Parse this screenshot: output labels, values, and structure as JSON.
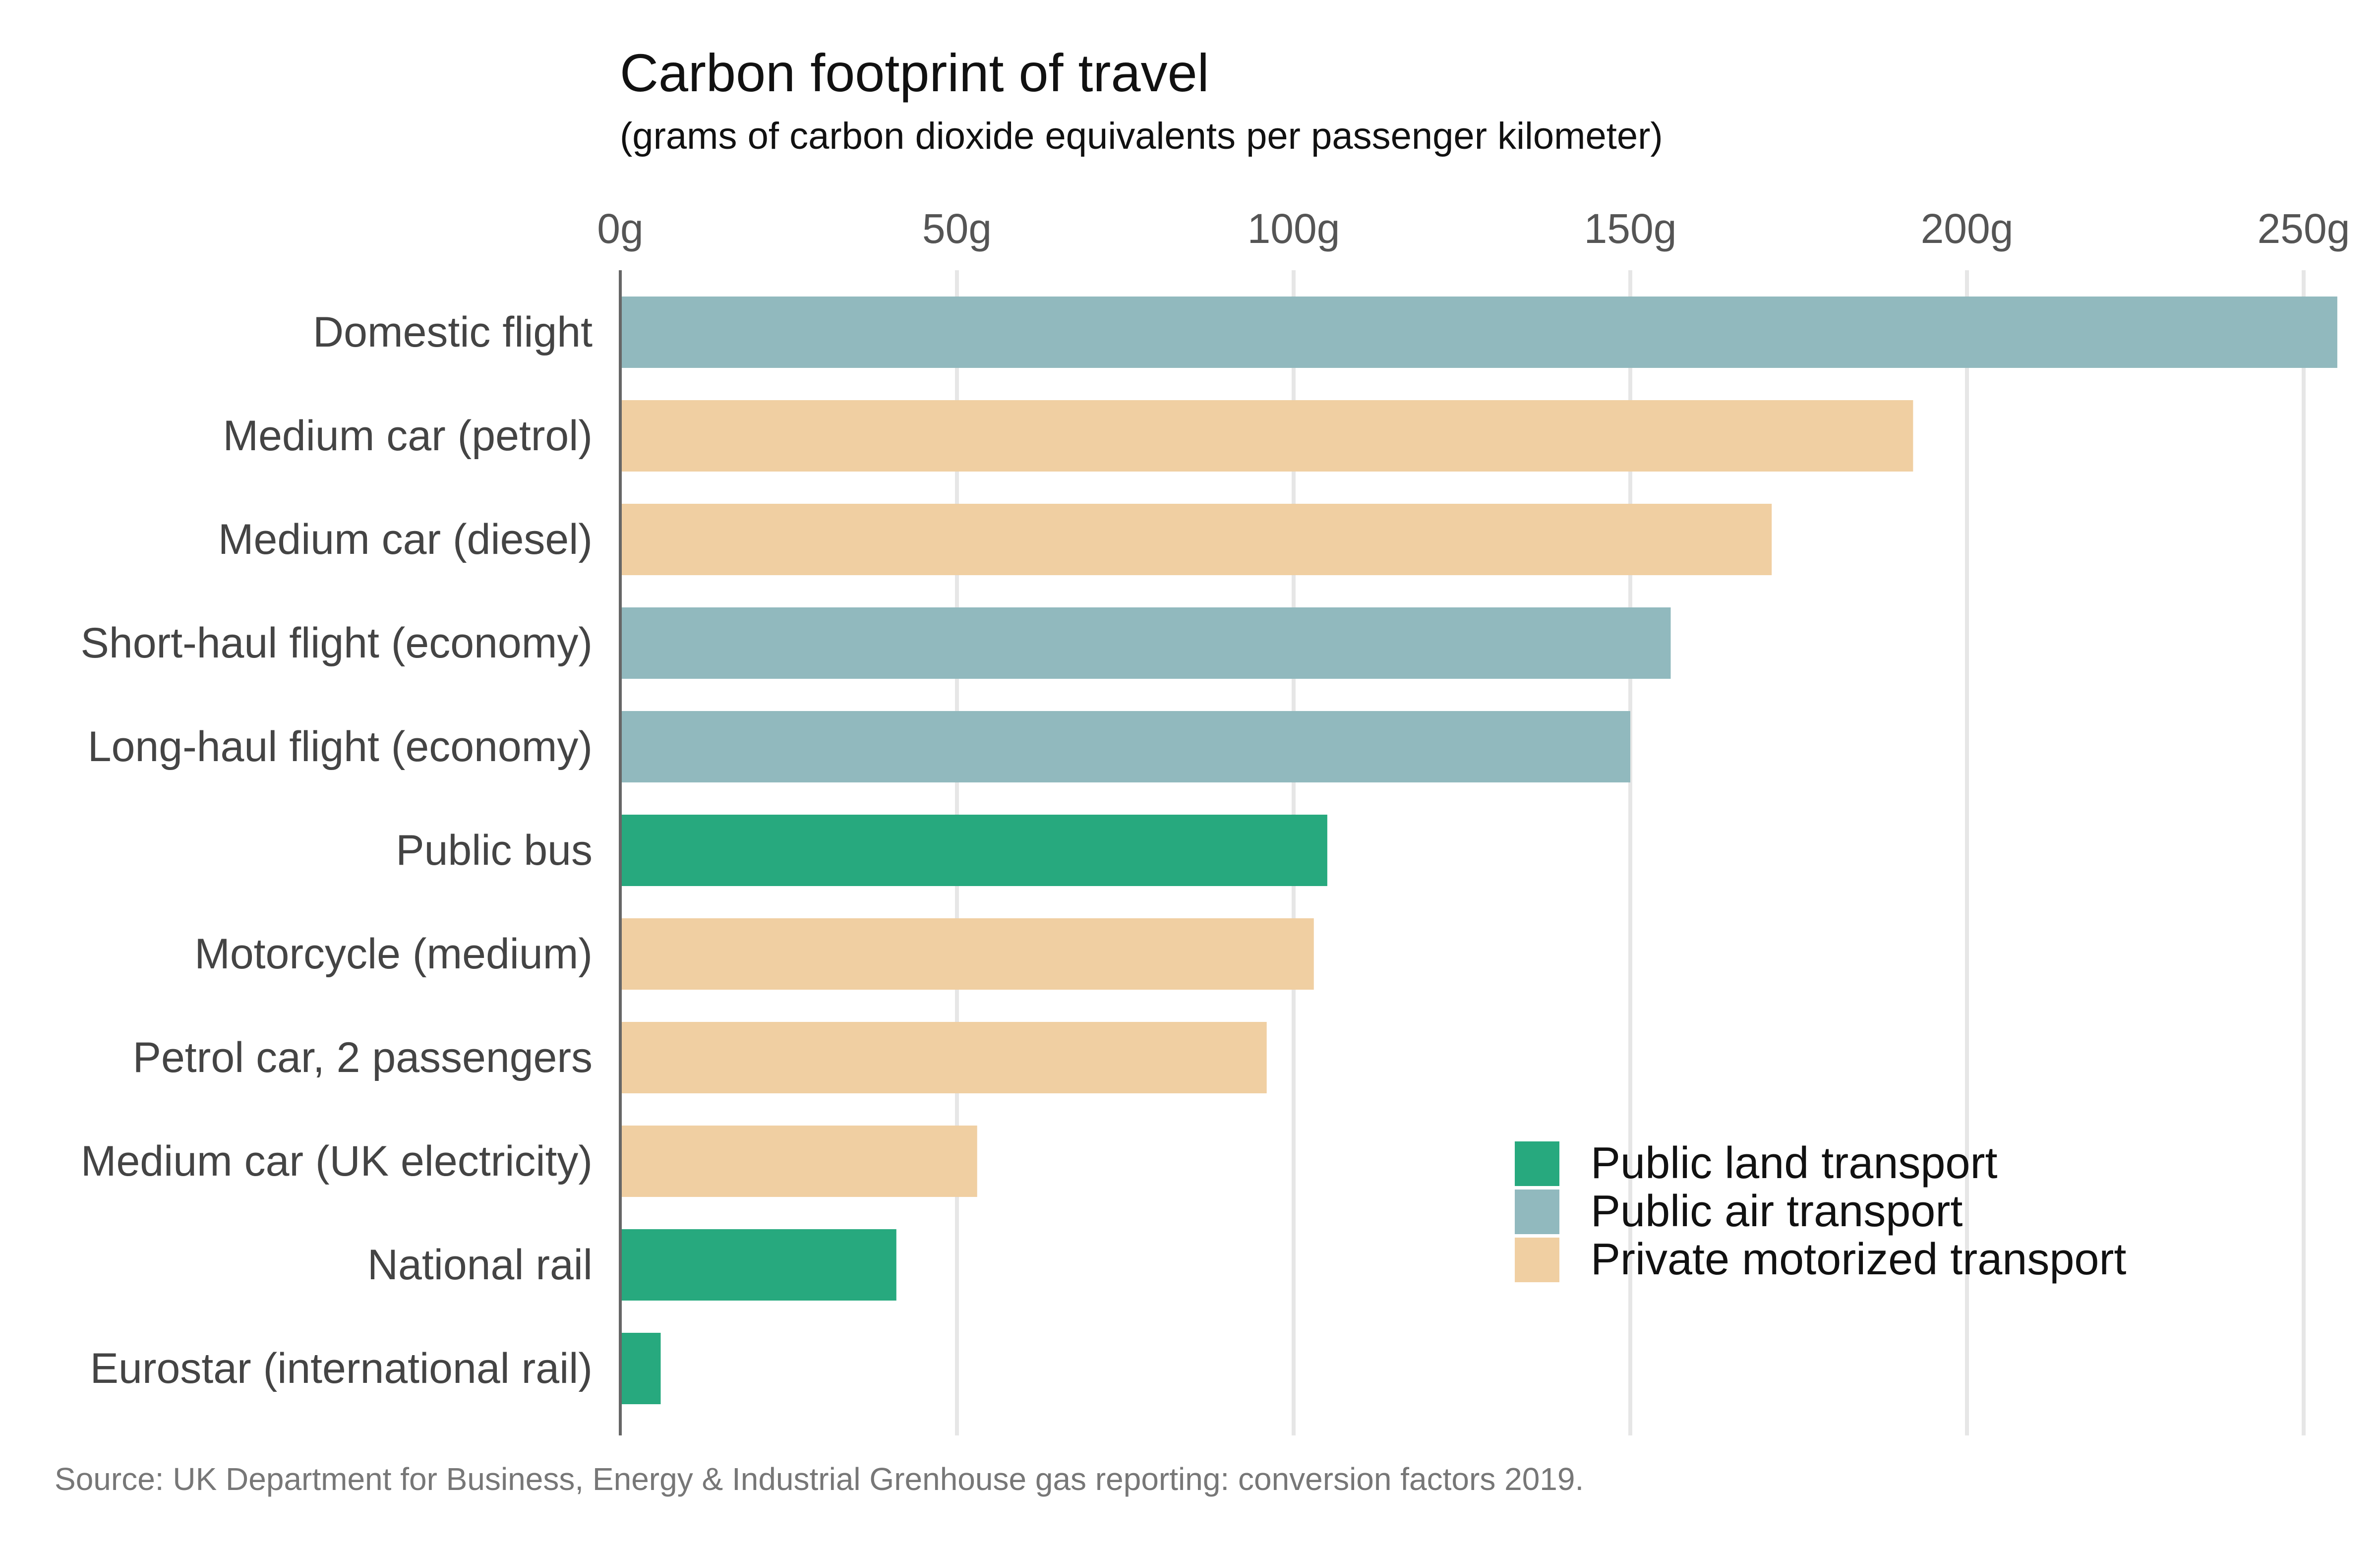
{
  "chart_data": {
    "type": "bar",
    "orientation": "horizontal",
    "title": "Carbon footprint of travel",
    "subtitle": "(grams of carbon dioxide equivalents per passenger kilometer)",
    "source": "Source: UK Department for Business, Energy & Industrial Grenhouse gas reporting: conversion factors 2019.",
    "x_axis": {
      "min": 0,
      "max": 255,
      "ticks": [
        0,
        50,
        100,
        150,
        200,
        250
      ],
      "tick_labels": [
        "0g",
        "50g",
        "100g",
        "150g",
        "200g",
        "250g"
      ],
      "position": "top",
      "grid": true
    },
    "categories": [
      "Domestic flight",
      "Medium car (petrol)",
      "Medium car (diesel)",
      "Short-haul flight (economy)",
      "Long-haul flight (economy)",
      "Public bus",
      "Motorcycle (medium)",
      "Petrol car, 2 passengers",
      "Medium car (UK electricity)",
      "National rail",
      "Eurostar (international rail)"
    ],
    "values": [
      255,
      192,
      171,
      156,
      150,
      105,
      103,
      96,
      53,
      41,
      6
    ],
    "groups": [
      "Public air transport",
      "Private motorized transport",
      "Private motorized transport",
      "Public air transport",
      "Public air transport",
      "Public land transport",
      "Private motorized transport",
      "Private motorized transport",
      "Private motorized transport",
      "Public land transport",
      "Public land transport"
    ],
    "legend": {
      "placement": "bottom-right",
      "entries": [
        {
          "name": "Public land transport",
          "color": "#27a97e"
        },
        {
          "name": "Public air transport",
          "color": "#91b9be"
        },
        {
          "name": "Private motorized transport",
          "color": "#f0cfa2"
        }
      ]
    }
  }
}
